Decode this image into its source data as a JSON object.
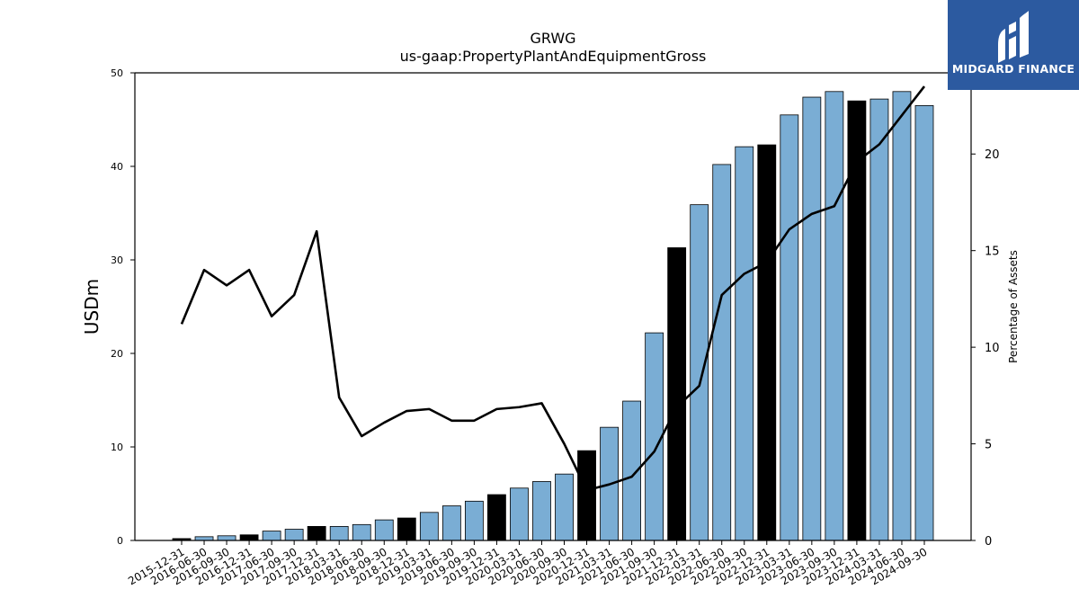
{
  "brand": {
    "name": "MIDGARD FINANCE",
    "background_color": "#2c5aa0",
    "text_color": "#ffffff",
    "icon": "midgard-logo-icon"
  },
  "chart_data": {
    "type": "bar",
    "title": "GRWG",
    "subtitle": "us-gaap:PropertyPlantAndEquipmentGross",
    "ylabel": "USDm",
    "ylabel_right": "Percentage of Assets",
    "ylim": [
      0,
      50
    ],
    "ylim_right": [
      0,
      24.2
    ],
    "yticks": [
      0,
      10,
      20,
      30,
      40,
      50
    ],
    "yticks_right": [
      0,
      5,
      10,
      15,
      20
    ],
    "bar_color": "#7aadd4",
    "highlight_color": "#000000",
    "line_color": "#000000",
    "categories": [
      "2015-12-31",
      "2016-06-30",
      "2016-09-30",
      "2016-12-31",
      "2017-06-30",
      "2017-09-30",
      "2017-12-31",
      "2018-03-31",
      "2018-06-30",
      "2018-09-30",
      "2018-12-31",
      "2019-03-31",
      "2019-06-30",
      "2019-09-30",
      "2019-12-31",
      "2020-03-31",
      "2020-06-30",
      "2020-09-30",
      "2020-12-31",
      "2021-03-31",
      "2021-06-30",
      "2021-09-30",
      "2021-12-31",
      "2022-03-31",
      "2022-06-30",
      "2022-09-30",
      "2022-12-31",
      "2023-03-31",
      "2023-06-30",
      "2023-09-30",
      "2023-12-31",
      "2024-03-31",
      "2024-06-30",
      "2024-09-30"
    ],
    "series": [
      {
        "type": "bar",
        "axis": "left",
        "values": [
          0.2,
          0.4,
          0.5,
          0.6,
          1.0,
          1.2,
          1.5,
          1.5,
          1.7,
          2.2,
          2.4,
          3.0,
          3.7,
          4.2,
          4.9,
          5.6,
          6.3,
          7.1,
          9.6,
          12.1,
          14.9,
          22.2,
          31.3,
          35.9,
          40.2,
          42.1,
          42.3,
          45.5,
          47.4,
          48.0,
          47.0,
          47.2,
          48.0,
          46.5
        ],
        "highlight": [
          true,
          false,
          false,
          true,
          false,
          false,
          true,
          false,
          false,
          false,
          true,
          false,
          false,
          false,
          true,
          false,
          false,
          false,
          true,
          false,
          false,
          false,
          true,
          false,
          false,
          false,
          true,
          false,
          false,
          false,
          true,
          false,
          false,
          false
        ]
      },
      {
        "type": "line",
        "axis": "right",
        "values": [
          11.2,
          14.0,
          13.2,
          14.0,
          11.6,
          12.7,
          16.0,
          7.4,
          5.4,
          6.1,
          6.7,
          6.8,
          6.2,
          6.2,
          6.8,
          6.9,
          7.1,
          5.0,
          2.6,
          2.9,
          3.3,
          4.6,
          6.9,
          8.0,
          12.7,
          13.8,
          14.4,
          16.1,
          16.9,
          17.3,
          19.6,
          20.5,
          22.0,
          23.5
        ]
      }
    ]
  }
}
